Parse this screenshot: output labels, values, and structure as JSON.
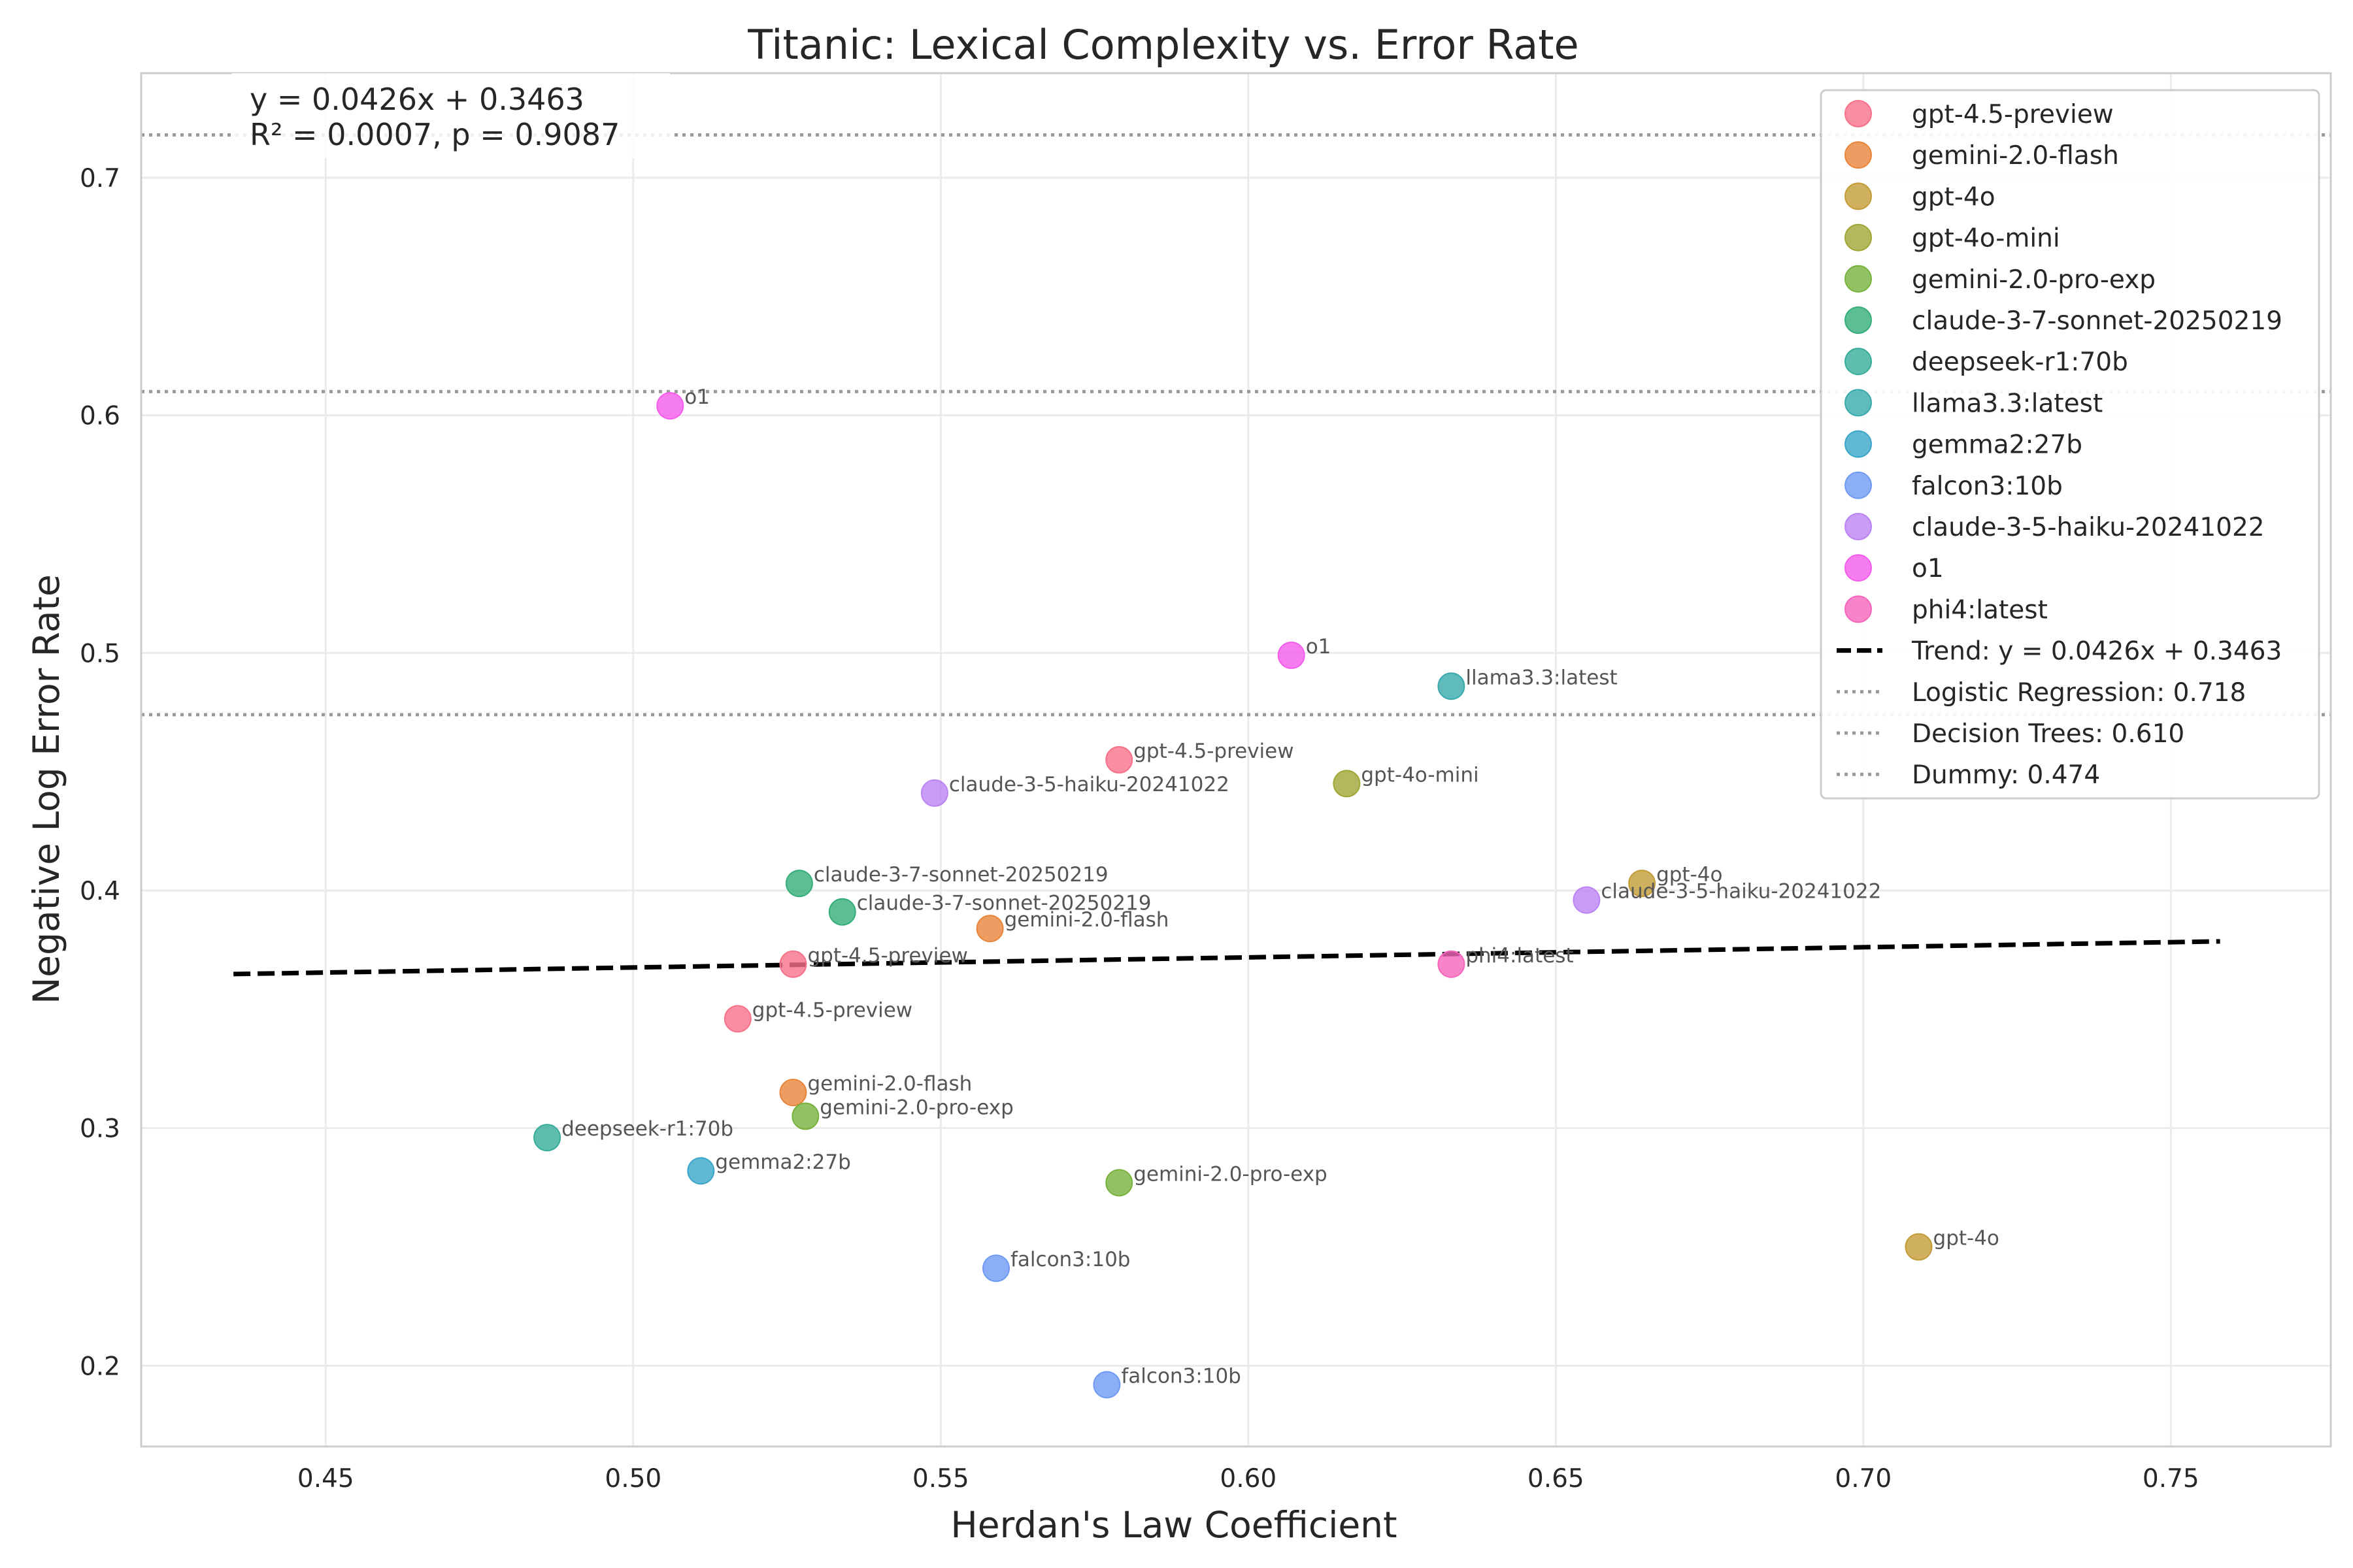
{
  "chart_data": {
    "type": "scatter",
    "title": "Titanic: Lexical Complexity vs. Error Rate",
    "xlabel": "Herdan's Law Coefficient",
    "ylabel": "Negative Log Error Rate",
    "xlim": [
      0.42,
      0.776
    ],
    "ylim": [
      0.166,
      0.744
    ],
    "xticks": [
      0.45,
      0.5,
      0.55,
      0.6,
      0.65,
      0.7,
      0.75
    ],
    "xtick_labels": [
      "0.45",
      "0.50",
      "0.55",
      "0.60",
      "0.65",
      "0.70",
      "0.75"
    ],
    "yticks": [
      0.2,
      0.3,
      0.4,
      0.5,
      0.6,
      0.7
    ],
    "ytick_labels": [
      "0.2",
      "0.3",
      "0.4",
      "0.5",
      "0.6",
      "0.7"
    ],
    "grid": true,
    "legend_position": "top-right",
    "annotation": {
      "line1": "y = 0.0426x + 0.3463",
      "line2": "R² = 0.0007, p = 0.9087"
    },
    "trend": {
      "label": "Trend: y = 0.0426x + 0.3463",
      "slope": 0.0426,
      "intercept": 0.3463,
      "x_range": [
        0.435,
        0.758
      ],
      "color": "#000000"
    },
    "reference_lines": [
      {
        "label": "Logistic Regression: 0.718",
        "y": 0.718
      },
      {
        "label": "Decision Trees: 0.610",
        "y": 0.61
      },
      {
        "label": "Dummy: 0.474",
        "y": 0.474
      }
    ],
    "series": [
      {
        "name": "gpt-4.5-preview",
        "color": "#f77189",
        "points": [
          [
            0.579,
            0.455
          ],
          [
            0.526,
            0.369
          ],
          [
            0.517,
            0.346
          ]
        ]
      },
      {
        "name": "gemini-2.0-flash",
        "color": "#e9853b",
        "points": [
          [
            0.558,
            0.384
          ],
          [
            0.526,
            0.315
          ]
        ]
      },
      {
        "name": "gpt-4o",
        "color": "#c39c37",
        "points": [
          [
            0.664,
            0.403
          ],
          [
            0.709,
            0.25
          ]
        ]
      },
      {
        "name": "gpt-4o-mini",
        "color": "#a0a534",
        "points": [
          [
            0.616,
            0.445
          ]
        ]
      },
      {
        "name": "gemini-2.0-pro-exp",
        "color": "#77b23d",
        "points": [
          [
            0.528,
            0.305
          ],
          [
            0.579,
            0.277
          ]
        ]
      },
      {
        "name": "claude-3-7-sonnet-20250219",
        "color": "#35ae7a",
        "points": [
          [
            0.527,
            0.403
          ],
          [
            0.534,
            0.391
          ]
        ]
      },
      {
        "name": "deepseek-r1:70b",
        "color": "#36ad9a",
        "points": [
          [
            0.486,
            0.296
          ]
        ]
      },
      {
        "name": "llama3.3:latest",
        "color": "#38aaac",
        "points": [
          [
            0.633,
            0.486
          ]
        ]
      },
      {
        "name": "gemma2:27b",
        "color": "#3aa6c8",
        "points": [
          [
            0.511,
            0.282
          ]
        ]
      },
      {
        "name": "falcon3:10b",
        "color": "#6e9af4",
        "points": [
          [
            0.559,
            0.241
          ],
          [
            0.577,
            0.192
          ]
        ]
      },
      {
        "name": "claude-3-5-haiku-20241022",
        "color": "#bb83f4",
        "points": [
          [
            0.549,
            0.441
          ],
          [
            0.655,
            0.396
          ]
        ]
      },
      {
        "name": "o1",
        "color": "#f45deb",
        "points": [
          [
            0.506,
            0.604
          ],
          [
            0.607,
            0.499
          ]
        ]
      },
      {
        "name": "phi4:latest",
        "color": "#f565bc",
        "points": [
          [
            0.633,
            0.369
          ]
        ]
      }
    ]
  }
}
